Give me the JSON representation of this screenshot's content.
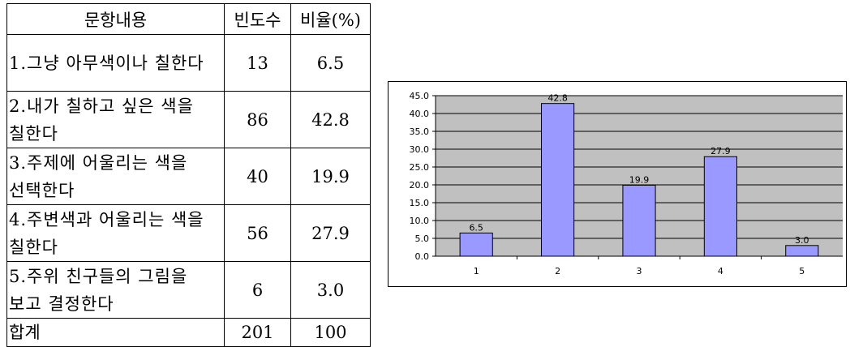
{
  "table": {
    "headers": [
      "문항내용",
      "빈도수",
      "비율(%)"
    ],
    "rows": [
      {
        "item": "1.그냥 아무색이나 칠한다",
        "freq": "13",
        "ratio": "6.5"
      },
      {
        "item": "2.내가 칠하고 싶은 색을 칠한다",
        "freq": "86",
        "ratio": "42.8"
      },
      {
        "item": "3.주제에 어울리는 색을 선택한다",
        "freq": "40",
        "ratio": "19.9"
      },
      {
        "item": "4.주변색과 어울리는 색을 칠한다",
        "freq": "56",
        "ratio": "27.9"
      },
      {
        "item": "5.주위 친구들의 그림을 보고 결정한다",
        "freq": "6",
        "ratio": "3.0"
      }
    ],
    "total": {
      "label": "합계",
      "freq": "201",
      "ratio": "100"
    }
  },
  "chart_data": {
    "type": "bar",
    "categories": [
      "1",
      "2",
      "3",
      "4",
      "5"
    ],
    "values": [
      6.5,
      42.8,
      19.9,
      27.9,
      3.0
    ],
    "data_labels": [
      "6.5",
      "42.8",
      "19.9",
      "27.9",
      "3.0"
    ],
    "ylim": [
      0,
      45
    ],
    "yticks": [
      "0.0",
      "5.0",
      "10.0",
      "15.0",
      "20.0",
      "25.0",
      "30.0",
      "35.0",
      "40.0",
      "45.0"
    ],
    "grid": true,
    "legend": "none",
    "bar_color": "#9999ff",
    "plot_background": "#c0c0c0"
  }
}
